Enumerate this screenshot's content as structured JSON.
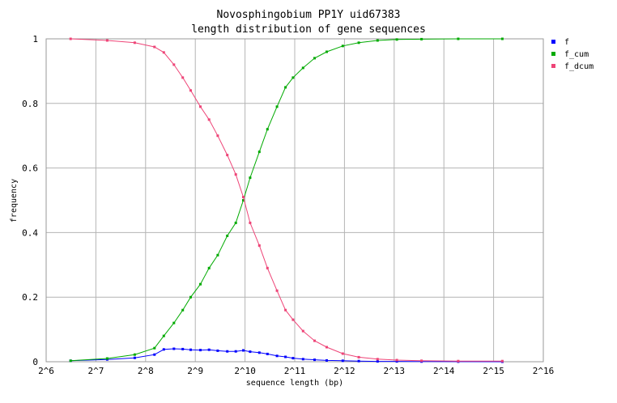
{
  "chart_data": {
    "type": "line",
    "title": "Novosphingobium PP1Y uid67383",
    "subtitle": "length distribution of gene sequences",
    "xlabel": "sequence length (bp)",
    "ylabel": "frequency",
    "x_scale": "log2",
    "xlim": [
      64,
      65536
    ],
    "ylim": [
      0,
      1
    ],
    "x_ticks": [
      "2^6",
      "2^7",
      "2^8",
      "2^9",
      "2^10",
      "2^11",
      "2^12",
      "2^13",
      "2^14",
      "2^15",
      "2^16"
    ],
    "y_ticks": [
      "0",
      "0.2",
      "0.4",
      "0.6",
      "0.8",
      "1"
    ],
    "grid": true,
    "legend_position": "right",
    "series": [
      {
        "name": "f",
        "color": "#0000ff",
        "points": [
          [
            90,
            0.003
          ],
          [
            150,
            0.007
          ],
          [
            220,
            0.012
          ],
          [
            290,
            0.022
          ],
          [
            330,
            0.038
          ],
          [
            380,
            0.04
          ],
          [
            430,
            0.039
          ],
          [
            480,
            0.037
          ],
          [
            550,
            0.036
          ],
          [
            620,
            0.037
          ],
          [
            700,
            0.034
          ],
          [
            800,
            0.032
          ],
          [
            900,
            0.032
          ],
          [
            1000,
            0.035
          ],
          [
            1100,
            0.031
          ],
          [
            1250,
            0.028
          ],
          [
            1400,
            0.024
          ],
          [
            1600,
            0.018
          ],
          [
            1800,
            0.015
          ],
          [
            2000,
            0.011
          ],
          [
            2300,
            0.008
          ],
          [
            2700,
            0.006
          ],
          [
            3200,
            0.004
          ],
          [
            4000,
            0.003
          ],
          [
            5000,
            0.002
          ],
          [
            6500,
            0.001
          ],
          [
            8500,
            0.001
          ],
          [
            12000,
            0.0005
          ],
          [
            20000,
            0.0003
          ],
          [
            37000,
            0.0001
          ]
        ]
      },
      {
        "name": "f_cum",
        "color": "#00aa00",
        "points": [
          [
            90,
            0.003
          ],
          [
            150,
            0.01
          ],
          [
            220,
            0.022
          ],
          [
            290,
            0.042
          ],
          [
            330,
            0.08
          ],
          [
            380,
            0.12
          ],
          [
            430,
            0.16
          ],
          [
            480,
            0.2
          ],
          [
            550,
            0.24
          ],
          [
            620,
            0.29
          ],
          [
            700,
            0.33
          ],
          [
            800,
            0.39
          ],
          [
            900,
            0.43
          ],
          [
            1000,
            0.5
          ],
          [
            1100,
            0.57
          ],
          [
            1250,
            0.65
          ],
          [
            1400,
            0.72
          ],
          [
            1600,
            0.79
          ],
          [
            1800,
            0.85
          ],
          [
            2000,
            0.88
          ],
          [
            2300,
            0.91
          ],
          [
            2700,
            0.94
          ],
          [
            3200,
            0.96
          ],
          [
            4000,
            0.978
          ],
          [
            5000,
            0.988
          ],
          [
            6500,
            0.995
          ],
          [
            8500,
            0.998
          ],
          [
            12000,
            0.999
          ],
          [
            20000,
            1.0
          ],
          [
            37000,
            1.0
          ]
        ]
      },
      {
        "name": "f_dcum",
        "color": "#ee4477",
        "points": [
          [
            90,
            1.0
          ],
          [
            150,
            0.995
          ],
          [
            220,
            0.988
          ],
          [
            290,
            0.975
          ],
          [
            330,
            0.958
          ],
          [
            380,
            0.92
          ],
          [
            430,
            0.88
          ],
          [
            480,
            0.84
          ],
          [
            550,
            0.79
          ],
          [
            620,
            0.75
          ],
          [
            700,
            0.7
          ],
          [
            800,
            0.64
          ],
          [
            900,
            0.58
          ],
          [
            1000,
            0.51
          ],
          [
            1100,
            0.43
          ],
          [
            1250,
            0.36
          ],
          [
            1400,
            0.29
          ],
          [
            1600,
            0.22
          ],
          [
            1800,
            0.16
          ],
          [
            2000,
            0.13
          ],
          [
            2300,
            0.095
          ],
          [
            2700,
            0.065
          ],
          [
            3200,
            0.045
          ],
          [
            4000,
            0.025
          ],
          [
            5000,
            0.014
          ],
          [
            6500,
            0.008
          ],
          [
            8500,
            0.005
          ],
          [
            12000,
            0.003
          ],
          [
            20000,
            0.002
          ],
          [
            37000,
            0.002
          ]
        ]
      }
    ]
  }
}
